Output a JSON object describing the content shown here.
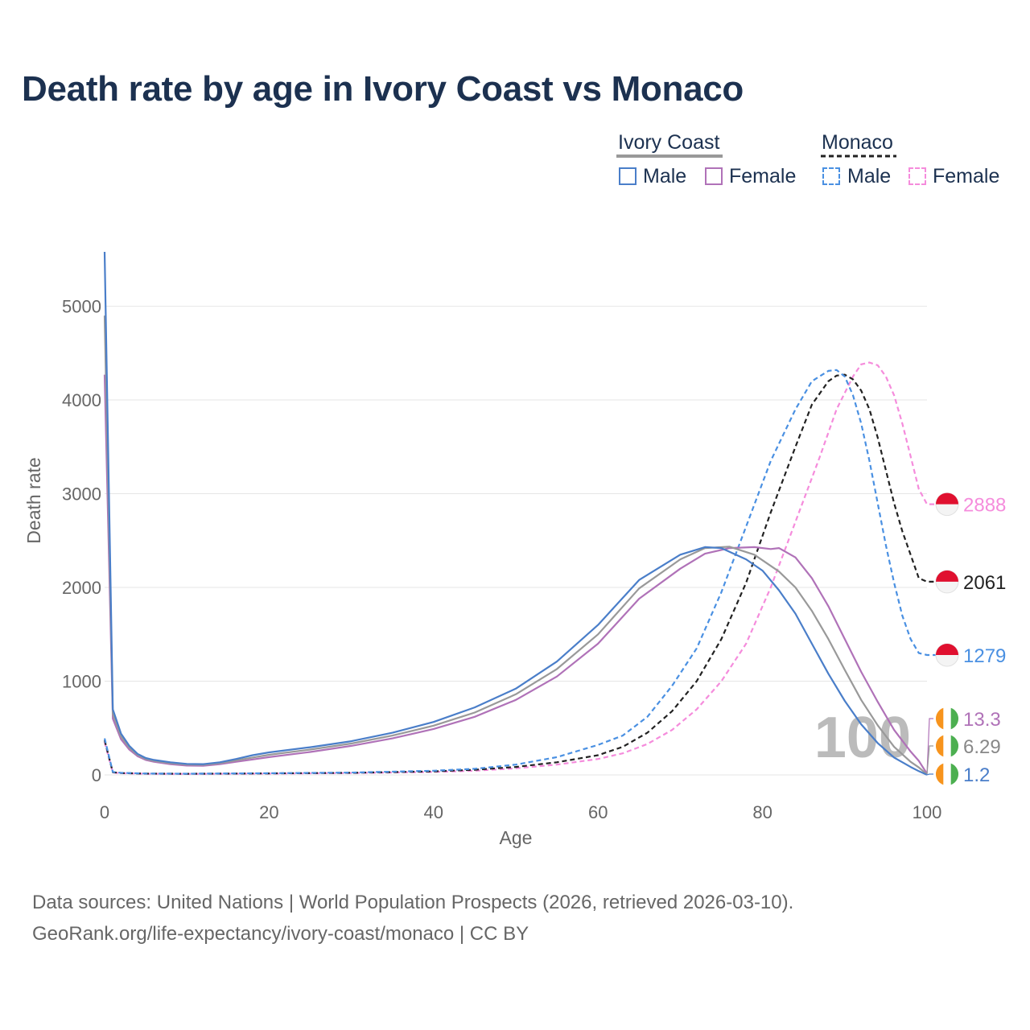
{
  "title": "Death rate by age in Ivory Coast vs Monaco",
  "legend": {
    "groups": [
      {
        "label": "Ivory Coast",
        "items": [
          {
            "label": "Male",
            "color": "#4a7ec9",
            "dashed": false
          },
          {
            "label": "Female",
            "color": "#b072b8",
            "dashed": false
          }
        ]
      },
      {
        "label": "Monaco",
        "items": [
          {
            "label": "Male",
            "color": "#4a90e2",
            "dashed": true
          },
          {
            "label": "Female",
            "color": "#f58cdc",
            "dashed": true
          }
        ]
      }
    ]
  },
  "footer": {
    "line1": "Data sources: United Nations | World Population Prospects (2026, retrieved 2026-03-10).",
    "line2": "GeoRank.org/life-expectancy/ivory-coast/monaco | CC BY"
  },
  "chart_data": {
    "type": "line",
    "title": "Death rate by age in Ivory Coast vs Monaco",
    "xlabel": "Age",
    "ylabel": "Death rate",
    "xlim": [
      0,
      100
    ],
    "ylim": [
      0,
      5600
    ],
    "xticks": [
      0,
      20,
      40,
      60,
      80,
      100
    ],
    "yticks": [
      0,
      1000,
      2000,
      3000,
      4000,
      5000
    ],
    "grid": true,
    "age_marker": "100",
    "series": [
      {
        "name": "Monaco Female",
        "country": "Monaco",
        "sex": "Female",
        "color": "#f58cdc",
        "dashed": true,
        "end_label": "2888",
        "points": [
          [
            0,
            350
          ],
          [
            1,
            25
          ],
          [
            2,
            18
          ],
          [
            5,
            12
          ],
          [
            10,
            10
          ],
          [
            20,
            14
          ],
          [
            30,
            20
          ],
          [
            40,
            32
          ],
          [
            45,
            45
          ],
          [
            50,
            70
          ],
          [
            55,
            110
          ],
          [
            60,
            170
          ],
          [
            63,
            230
          ],
          [
            66,
            330
          ],
          [
            69,
            480
          ],
          [
            72,
            700
          ],
          [
            75,
            1000
          ],
          [
            78,
            1400
          ],
          [
            81,
            2000
          ],
          [
            84,
            2700
          ],
          [
            87,
            3400
          ],
          [
            89,
            3900
          ],
          [
            91,
            4250
          ],
          [
            92,
            4380
          ],
          [
            93,
            4400
          ],
          [
            94,
            4370
          ],
          [
            95,
            4250
          ],
          [
            96,
            4050
          ],
          [
            97,
            3750
          ],
          [
            98,
            3400
          ],
          [
            99,
            3050
          ],
          [
            100,
            2888
          ]
        ]
      },
      {
        "name": "Monaco Both",
        "country": "Monaco",
        "sex": "Both",
        "color": "#222222",
        "dashed": true,
        "end_label": "2061",
        "points": [
          [
            0,
            370
          ],
          [
            1,
            28
          ],
          [
            2,
            20
          ],
          [
            5,
            14
          ],
          [
            10,
            12
          ],
          [
            20,
            16
          ],
          [
            30,
            22
          ],
          [
            40,
            38
          ],
          [
            45,
            55
          ],
          [
            50,
            85
          ],
          [
            55,
            135
          ],
          [
            60,
            210
          ],
          [
            63,
            300
          ],
          [
            66,
            450
          ],
          [
            69,
            680
          ],
          [
            72,
            1000
          ],
          [
            75,
            1450
          ],
          [
            78,
            2050
          ],
          [
            81,
            2800
          ],
          [
            84,
            3500
          ],
          [
            86,
            3950
          ],
          [
            88,
            4200
          ],
          [
            89,
            4260
          ],
          [
            90,
            4270
          ],
          [
            91,
            4220
          ],
          [
            92,
            4100
          ],
          [
            93,
            3900
          ],
          [
            94,
            3600
          ],
          [
            95,
            3250
          ],
          [
            96,
            2900
          ],
          [
            97,
            2600
          ],
          [
            98,
            2350
          ],
          [
            99,
            2100
          ],
          [
            100,
            2061
          ]
        ]
      },
      {
        "name": "Monaco Male",
        "country": "Monaco",
        "sex": "Male",
        "color": "#4a90e2",
        "dashed": true,
        "end_label": "1279",
        "points": [
          [
            0,
            390
          ],
          [
            1,
            32
          ],
          [
            2,
            22
          ],
          [
            5,
            15
          ],
          [
            10,
            13
          ],
          [
            20,
            18
          ],
          [
            30,
            25
          ],
          [
            40,
            45
          ],
          [
            45,
            65
          ],
          [
            50,
            110
          ],
          [
            55,
            190
          ],
          [
            60,
            320
          ],
          [
            63,
            420
          ],
          [
            66,
            620
          ],
          [
            69,
            950
          ],
          [
            72,
            1350
          ],
          [
            75,
            1950
          ],
          [
            78,
            2650
          ],
          [
            81,
            3350
          ],
          [
            84,
            3900
          ],
          [
            86,
            4200
          ],
          [
            88,
            4310
          ],
          [
            89,
            4320
          ],
          [
            90,
            4250
          ],
          [
            91,
            4050
          ],
          [
            92,
            3750
          ],
          [
            93,
            3350
          ],
          [
            94,
            2900
          ],
          [
            95,
            2450
          ],
          [
            96,
            2050
          ],
          [
            97,
            1700
          ],
          [
            98,
            1450
          ],
          [
            99,
            1300
          ],
          [
            100,
            1279
          ]
        ]
      },
      {
        "name": "Ivory Coast Female",
        "country": "Ivory Coast",
        "sex": "Female",
        "color": "#b072b8",
        "dashed": false,
        "end_label": "13.3",
        "points": [
          [
            0,
            4270
          ],
          [
            1,
            600
          ],
          [
            2,
            380
          ],
          [
            3,
            270
          ],
          [
            4,
            200
          ],
          [
            5,
            160
          ],
          [
            6,
            140
          ],
          [
            8,
            115
          ],
          [
            10,
            100
          ],
          [
            12,
            98
          ],
          [
            14,
            115
          ],
          [
            16,
            140
          ],
          [
            18,
            165
          ],
          [
            20,
            190
          ],
          [
            25,
            245
          ],
          [
            30,
            310
          ],
          [
            35,
            390
          ],
          [
            40,
            490
          ],
          [
            45,
            620
          ],
          [
            50,
            800
          ],
          [
            55,
            1050
          ],
          [
            60,
            1400
          ],
          [
            65,
            1880
          ],
          [
            70,
            2200
          ],
          [
            73,
            2360
          ],
          [
            76,
            2420
          ],
          [
            79,
            2430
          ],
          [
            81,
            2410
          ],
          [
            82,
            2420
          ],
          [
            84,
            2320
          ],
          [
            86,
            2100
          ],
          [
            88,
            1800
          ],
          [
            90,
            1450
          ],
          [
            92,
            1100
          ],
          [
            94,
            780
          ],
          [
            96,
            480
          ],
          [
            98,
            250
          ],
          [
            99,
            150
          ],
          [
            100,
            13.3
          ]
        ]
      },
      {
        "name": "Ivory Coast Both",
        "country": "Ivory Coast",
        "sex": "Both",
        "color": "#999999",
        "dashed": false,
        "end_label": "6.29",
        "points": [
          [
            0,
            4900
          ],
          [
            1,
            650
          ],
          [
            2,
            410
          ],
          [
            3,
            290
          ],
          [
            4,
            215
          ],
          [
            5,
            170
          ],
          [
            6,
            150
          ],
          [
            8,
            125
          ],
          [
            10,
            110
          ],
          [
            12,
            108
          ],
          [
            14,
            125
          ],
          [
            16,
            155
          ],
          [
            18,
            185
          ],
          [
            20,
            215
          ],
          [
            25,
            270
          ],
          [
            30,
            335
          ],
          [
            35,
            420
          ],
          [
            40,
            525
          ],
          [
            45,
            665
          ],
          [
            50,
            860
          ],
          [
            55,
            1130
          ],
          [
            60,
            1500
          ],
          [
            65,
            1990
          ],
          [
            70,
            2300
          ],
          [
            73,
            2420
          ],
          [
            76,
            2435
          ],
          [
            79,
            2350
          ],
          [
            82,
            2170
          ],
          [
            84,
            2000
          ],
          [
            86,
            1750
          ],
          [
            88,
            1450
          ],
          [
            90,
            1120
          ],
          [
            92,
            800
          ],
          [
            94,
            530
          ],
          [
            96,
            300
          ],
          [
            98,
            140
          ],
          [
            99,
            80
          ],
          [
            100,
            6.29
          ]
        ]
      },
      {
        "name": "Ivory Coast Male",
        "country": "Ivory Coast",
        "sex": "Male",
        "color": "#4a7ec9",
        "dashed": false,
        "end_label": "1.2",
        "points": [
          [
            0,
            5580
          ],
          [
            1,
            700
          ],
          [
            2,
            440
          ],
          [
            3,
            310
          ],
          [
            4,
            225
          ],
          [
            5,
            180
          ],
          [
            6,
            160
          ],
          [
            8,
            135
          ],
          [
            10,
            118
          ],
          [
            12,
            115
          ],
          [
            14,
            135
          ],
          [
            16,
            170
          ],
          [
            18,
            210
          ],
          [
            20,
            240
          ],
          [
            25,
            295
          ],
          [
            30,
            360
          ],
          [
            35,
            450
          ],
          [
            40,
            565
          ],
          [
            45,
            720
          ],
          [
            50,
            920
          ],
          [
            55,
            1210
          ],
          [
            60,
            1600
          ],
          [
            65,
            2080
          ],
          [
            70,
            2350
          ],
          [
            73,
            2430
          ],
          [
            75,
            2420
          ],
          [
            78,
            2300
          ],
          [
            80,
            2180
          ],
          [
            82,
            1970
          ],
          [
            84,
            1720
          ],
          [
            86,
            1400
          ],
          [
            88,
            1080
          ],
          [
            90,
            790
          ],
          [
            92,
            540
          ],
          [
            94,
            340
          ],
          [
            96,
            185
          ],
          [
            98,
            85
          ],
          [
            99,
            40
          ],
          [
            100,
            1.2
          ]
        ]
      }
    ]
  }
}
